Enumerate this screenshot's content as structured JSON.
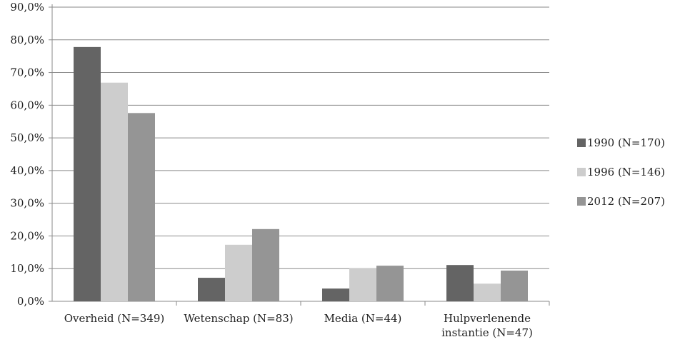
{
  "chart_data": {
    "type": "bar",
    "title": "",
    "xlabel": "",
    "ylabel": "",
    "categories": [
      [
        "Overheid (N=349)"
      ],
      [
        "Wetenschap (N=83)"
      ],
      [
        "Media (N=44)"
      ],
      [
        "Hulpverlenende",
        "instantie (N=47)"
      ]
    ],
    "series": [
      {
        "name": "1990 (N=170)",
        "color": "#646464",
        "values": [
          77.8,
          7.2,
          3.9,
          11.1
        ]
      },
      {
        "name": "1996 (N=146)",
        "color": "#cdcdcd",
        "values": [
          66.9,
          17.3,
          10.2,
          5.4
        ]
      },
      {
        "name": "2012 (N=207)",
        "color": "#959595",
        "values": [
          57.6,
          22.1,
          10.9,
          9.4
        ]
      }
    ],
    "ylim": [
      0,
      90
    ],
    "yticks": [
      "0,0%",
      "10,0%",
      "20,0%",
      "30,0%",
      "40,0%",
      "50,0%",
      "60,0%",
      "70,0%",
      "80,0%",
      "90,0%"
    ],
    "grid": true,
    "legend_position": "right"
  }
}
